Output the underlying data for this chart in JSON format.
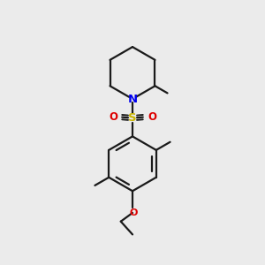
{
  "background_color": "#ebebeb",
  "bond_color": "#1a1a1a",
  "N_color": "#0000ee",
  "S_color": "#c8b400",
  "O_color": "#dd0000",
  "lw": 1.6,
  "figsize": [
    3.0,
    3.0
  ],
  "dpi": 100,
  "xlim": [
    0,
    10
  ],
  "ylim": [
    0,
    10
  ]
}
